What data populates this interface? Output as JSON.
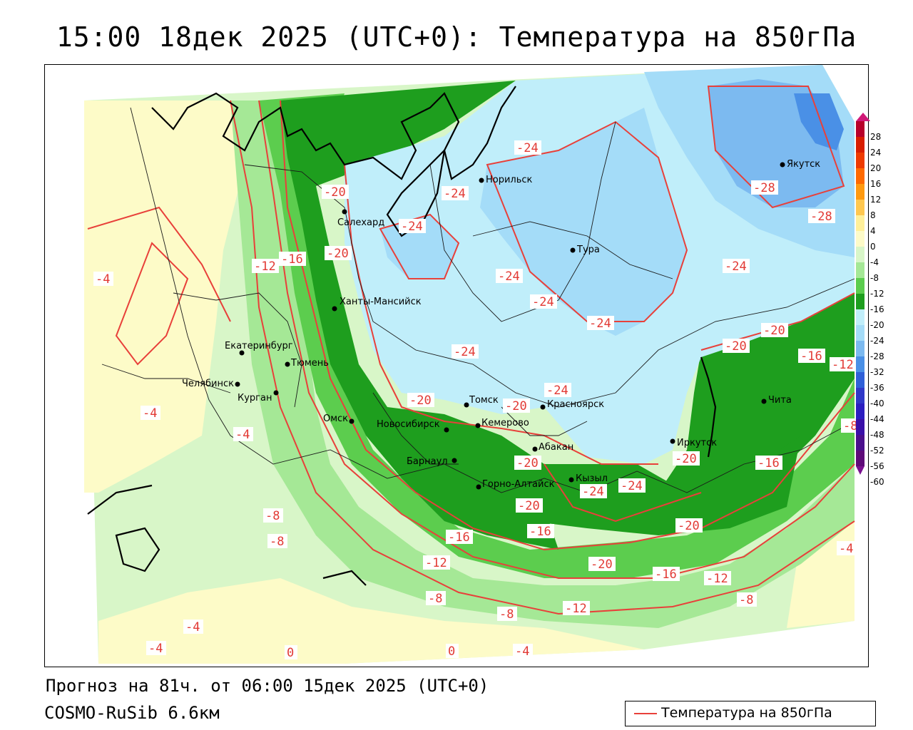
{
  "title": "15:00 18дек 2025 (UTC+0): Температура на 850гПа",
  "forecast": "Прогноз на 81ч. от 06:00 15дек 2025 (UTC+0)",
  "model": "COSMO-RuSib 6.6км",
  "legend_label": "Температура на 850гПа",
  "colors": {
    "isoline": "#e8403a",
    "border": "#000000",
    "admin_border": "#1a1a1a"
  },
  "color_scale": {
    "ticks": [
      "28",
      "24",
      "20",
      "16",
      "12",
      "8",
      "4",
      "0",
      "-4",
      "-8",
      "-12",
      "-16",
      "-20",
      "-24",
      "-28",
      "-32",
      "-36",
      "-40",
      "-44",
      "-48",
      "-52",
      "-56",
      "-60"
    ],
    "colors": [
      "#d11a78",
      "#b8002a",
      "#d81e00",
      "#ee3b00",
      "#ff6a00",
      "#ff9a10",
      "#ffc850",
      "#fff09a",
      "#fdfbc8",
      "#d8f6c8",
      "#a5e896",
      "#5ccd4e",
      "#1e9e1e",
      "#c0eefa",
      "#a4dcf8",
      "#7cbaf0",
      "#4a90e6",
      "#3060d8",
      "#3038c8",
      "#2c1ec0",
      "#3a10a8",
      "#4a108c",
      "#5e0a78",
      "#7a1090"
    ]
  },
  "cities": [
    {
      "name": "Якутск"
    },
    {
      "name": "Норильск"
    },
    {
      "name": "Салехард"
    },
    {
      "name": "Тура"
    },
    {
      "name": "Ханты-Мансийск"
    },
    {
      "name": "Екатеринбург"
    },
    {
      "name": "Тюмень"
    },
    {
      "name": "Челябинск"
    },
    {
      "name": "Курган"
    },
    {
      "name": "Омск"
    },
    {
      "name": "Новосибирск"
    },
    {
      "name": "Томск"
    },
    {
      "name": "Кемерово"
    },
    {
      "name": "Красноярск"
    },
    {
      "name": "Барнаул"
    },
    {
      "name": "Абакан"
    },
    {
      "name": "Горно-Алтайск"
    },
    {
      "name": "Кызыл"
    },
    {
      "name": "Иркутск"
    },
    {
      "name": "Чита"
    }
  ],
  "isotherm_labels": [
    "-24",
    "-28",
    "-28",
    "-24",
    "-24",
    "-24",
    "-20",
    "-20",
    "-24",
    "-24",
    "-24",
    "-24",
    "-24",
    "-20",
    "-20",
    "-20",
    "-20",
    "-16",
    "-12",
    "-16",
    "-12",
    "-8",
    "-4",
    "-4",
    "-4",
    "-8",
    "-8",
    "-12",
    "-16",
    "-16",
    "-20",
    "-20",
    "-20",
    "-16",
    "-24",
    "-24",
    "-12",
    "-8",
    "-8",
    "-4",
    "-4",
    "0",
    "0",
    "-4",
    "-12",
    "-20",
    "-16",
    "-12",
    "-8",
    "-4",
    "-16",
    "-20",
    "-8",
    "-4"
  ]
}
